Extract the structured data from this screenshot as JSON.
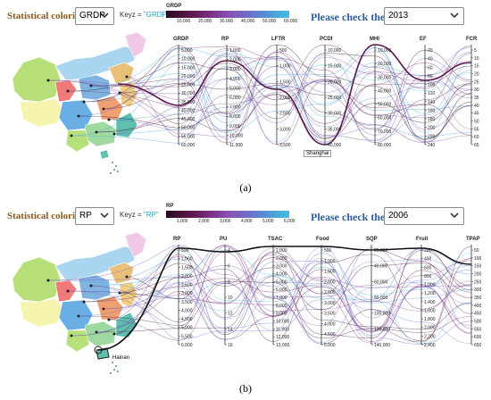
{
  "panels": [
    {
      "coloring_label": "Statistical coloring:",
      "coloring_value": "GRDP",
      "keyz_prefix": "Keyz = ",
      "keyz_value": "\"GRDP\"",
      "year_label": "Please check the year:",
      "year_value": "2013",
      "legend_title": "GRDP",
      "legend_ticks": [
        "10,000",
        "20,000",
        "30,000",
        "40,000",
        "50,000",
        "60,000"
      ],
      "legend_colors": [
        "#2a0a20",
        "#6a1b5a",
        "#8a4fb0",
        "#5f7fd8",
        "#3ec0e0"
      ],
      "axes": [
        {
          "name": "GRDP",
          "ticks": [
            "5,000",
            "10,000",
            "15,000",
            "20,000",
            "25,000",
            "30,000",
            "35,000",
            "40,000",
            "45,000",
            "50,000",
            "55,000",
            "60,000"
          ]
        },
        {
          "name": "RP",
          "ticks": [
            "1,000",
            "2,000",
            "3,000",
            "4,000",
            "5,000",
            "6,000",
            "7,000",
            "8,000",
            "9,000",
            "10,000",
            "11,000"
          ]
        },
        {
          "name": "LFTR",
          "ticks": [
            "500",
            "1,000",
            "1,500",
            "2,000",
            "2,500",
            "3,000",
            "3,500"
          ]
        },
        {
          "name": "PCDI",
          "ticks": [
            "10,000",
            "15,000",
            "20,000",
            "25,000",
            "30,000",
            "35,000",
            "40,000"
          ]
        },
        {
          "name": "MHI",
          "ticks": [
            "10,000",
            "20,000",
            "30,000",
            "40,000",
            "50,000",
            "60,000",
            "70,000",
            "80,000"
          ]
        },
        {
          "name": "EF",
          "ticks": [
            "20",
            "40",
            "60",
            "80",
            "100",
            "120",
            "140",
            "160",
            "180",
            "200",
            "220",
            "240"
          ]
        },
        {
          "name": "FCR",
          "ticks": [
            "5",
            "10",
            "15",
            "20",
            "25",
            "30",
            "35",
            "40",
            "45",
            "50",
            "55",
            "60",
            "65"
          ]
        }
      ],
      "callout": "Shanghai",
      "caption": "(a)"
    },
    {
      "coloring_label": "Statistical coloring:",
      "coloring_value": "RP",
      "keyz_prefix": "Keyz = ",
      "keyz_value": "\"RP\"",
      "year_label": "Please check the year:",
      "year_value": "2006",
      "legend_title": "RP",
      "legend_ticks": [
        "1,000",
        "2,000",
        "3,000",
        "4,000",
        "5,000",
        "6,000"
      ],
      "legend_colors": [
        "#2a0a20",
        "#6a1b5a",
        "#8a4fb0",
        "#5f7fd8",
        "#3ec0e0"
      ],
      "axes": [
        {
          "name": "RP",
          "ticks": [
            "500",
            "1,000",
            "1,500",
            "2,000",
            "2,500",
            "3,000",
            "3,500",
            "4,000",
            "4,500",
            "5,000",
            "5,500",
            "6,000"
          ]
        },
        {
          "name": "PU",
          "ticks": [
            "4",
            "6",
            "8",
            "10",
            "12",
            "14",
            "16"
          ]
        },
        {
          "name": "TSAC",
          "ticks": [
            "1,000",
            "2,000",
            "3,000",
            "4,000",
            "5,000",
            "6,000",
            "7,000",
            "8,000",
            "9,000",
            "10,000",
            "11,000",
            "12,000",
            "13,000"
          ]
        },
        {
          "name": "Food",
          "ticks": [
            "500",
            "1,000",
            "1,500",
            "2,000",
            "2,500",
            "3,000",
            "3,500",
            "4,000",
            "4,500",
            "5,000"
          ]
        },
        {
          "name": "SQP",
          "ticks": [
            "20,000",
            "40,000",
            "60,000",
            "80,000",
            "100,000",
            "120,000",
            "140,000"
          ]
        },
        {
          "name": "Fruit",
          "ticks": [
            "200",
            "400",
            "600",
            "800",
            "1,000",
            "1,200",
            "1,400",
            "1,600",
            "1,800",
            "2,000",
            "2,200",
            "2,400"
          ]
        },
        {
          "name": "TPAP",
          "ticks": [
            "50",
            "100",
            "150",
            "200",
            "250",
            "300",
            "350",
            "400",
            "450",
            "500",
            "550",
            "600",
            "650"
          ]
        }
      ],
      "callout": "Hainan",
      "caption": "(b)"
    }
  ]
}
